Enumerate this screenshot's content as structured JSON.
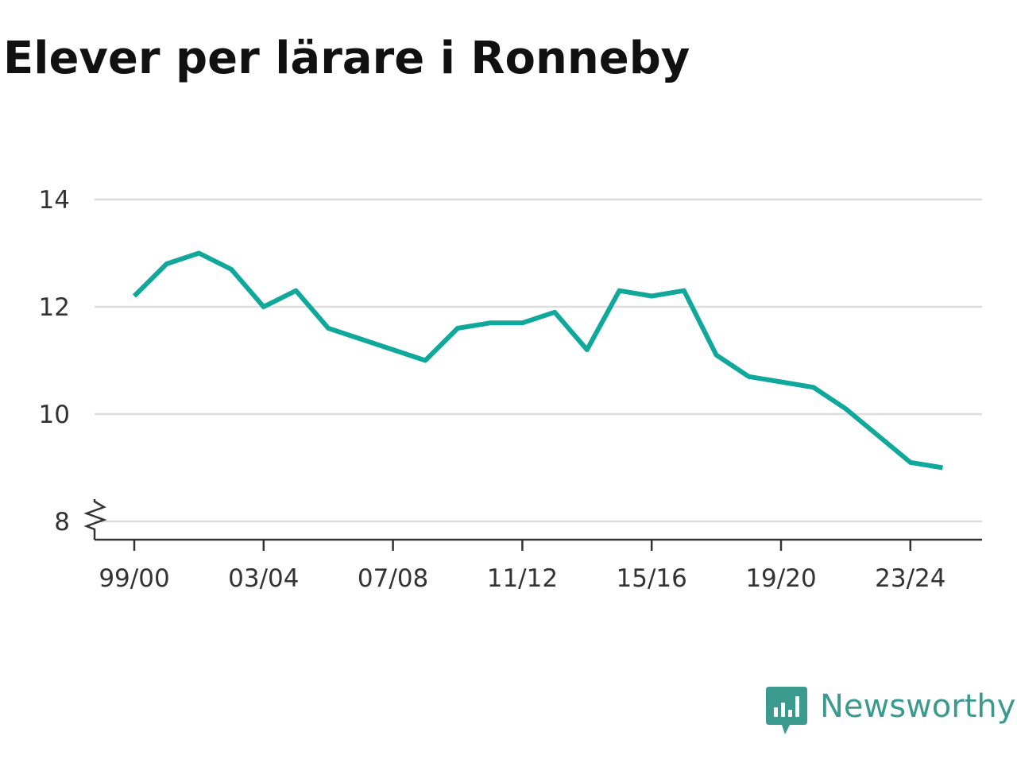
{
  "title": "Elever per lärare i Ronneby",
  "brand": {
    "name": "Newsworthy",
    "logo_icon": "bar-chart-speech-bubble-icon",
    "color": "#3a9a8e"
  },
  "chart_data": {
    "type": "line",
    "title": "Elever per lärare i Ronneby",
    "xlabel": "",
    "ylabel": "",
    "x": [
      "99/00",
      "00/01",
      "01/02",
      "02/03",
      "03/04",
      "04/05",
      "05/06",
      "06/07",
      "07/08",
      "08/09",
      "09/10",
      "10/11",
      "11/12",
      "12/13",
      "13/14",
      "14/15",
      "15/16",
      "16/17",
      "17/18",
      "18/19",
      "19/20",
      "20/21",
      "21/22",
      "22/23",
      "23/24",
      "24/25"
    ],
    "x_tick_labels": [
      "99/00",
      "03/04",
      "07/08",
      "11/12",
      "15/16",
      "19/20",
      "23/24"
    ],
    "series": [
      {
        "values": [
          12.2,
          12.8,
          13.0,
          12.7,
          12.0,
          12.3,
          11.6,
          11.4,
          11.2,
          11.0,
          11.6,
          11.7,
          11.7,
          11.9,
          11.2,
          12.3,
          12.2,
          12.3,
          11.1,
          10.7,
          10.6,
          10.5,
          10.1,
          9.6,
          9.1,
          9.0
        ],
        "color": "#0fa89a"
      }
    ],
    "y_ticks": [
      8,
      10,
      12,
      14
    ],
    "ylim": [
      7.6,
      14.3
    ],
    "y_axis_break": true,
    "grid": true,
    "gridline_color": "#dddddd",
    "axis_color": "#333333"
  }
}
